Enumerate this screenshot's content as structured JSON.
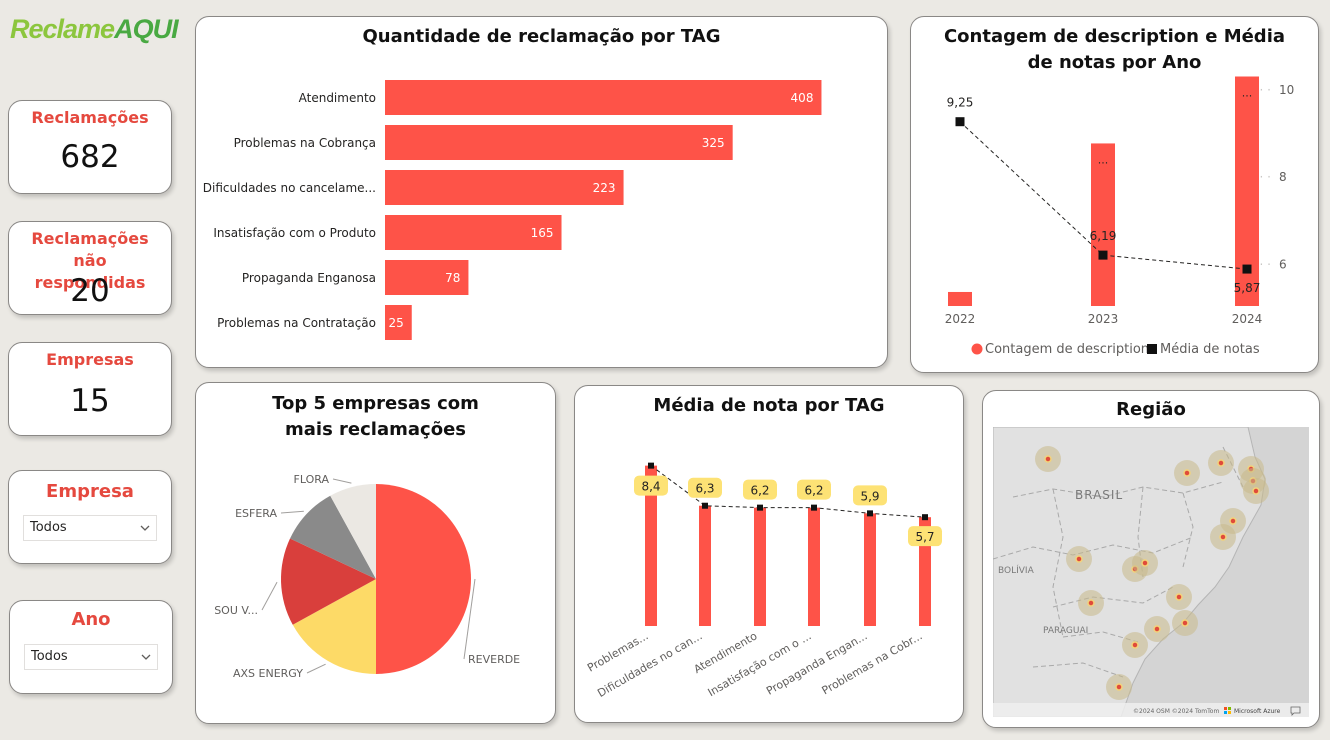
{
  "logo": {
    "part1": "Reclame",
    "part2": "AQUI"
  },
  "kpis": [
    {
      "label": "Reclamações",
      "value": "682"
    },
    {
      "label": "Reclamações não respondidas",
      "value": "20"
    },
    {
      "label": "Empresas",
      "value": "15"
    }
  ],
  "slicers": [
    {
      "title": "Empresa",
      "value": "Todos"
    },
    {
      "title": "Ano",
      "value": "Todos"
    }
  ],
  "colors": {
    "accent": "#fe5348",
    "label_bg": "#fde275",
    "pie": [
      "#fe5348",
      "#fdda67",
      "#d93f3c",
      "#8a8a8a",
      "#ebe8e3"
    ]
  },
  "chart_data": [
    {
      "type": "bar",
      "title": "Quantidade de reclamação por TAG",
      "categories": [
        "Atendimento",
        "Problemas na Cobrança",
        "Dificuldades no cancelame...",
        "Insatisfação com o Produto",
        "Propaganda Enganosa",
        "Problemas na Contratação"
      ],
      "values": [
        408,
        325,
        223,
        165,
        78,
        25
      ],
      "xlim": [
        0,
        430
      ],
      "orientation": "horizontal"
    },
    {
      "type": "bar+line",
      "title": "Contagem de description e Média de notas por Ano",
      "categories": [
        "2022",
        "2023",
        "2024"
      ],
      "series": [
        {
          "name": "Contagem de description",
          "type": "bar",
          "values": [
            22,
            255,
            360
          ],
          "labels": [
            "",
            "...",
            "..."
          ]
        },
        {
          "name": "Média de notas",
          "type": "line",
          "values": [
            9.25,
            6.19,
            5.87
          ],
          "labels": [
            "9,25",
            "6,19",
            "5,87"
          ]
        }
      ],
      "y2_ticks": [
        "10",
        "8",
        "6"
      ],
      "y2lim": [
        5,
        10
      ],
      "ylim": [
        0,
        400
      ],
      "legend": "bottom"
    },
    {
      "type": "pie",
      "title": "Top 5 empresas com mais reclamações",
      "labels": [
        "REVERDE",
        "AXS ENERGY",
        "SOU V...",
        "ESFERA",
        "FLORA"
      ],
      "values": [
        50,
        17,
        15,
        10,
        8
      ]
    },
    {
      "type": "bar+line",
      "title": "Média de nota por TAG",
      "categories": [
        "Problemas...",
        "Dificuldades no can...",
        "Atendimento",
        "Insatisfação com o ...",
        "Propaganda Engan...",
        "Problemas na Cobr..."
      ],
      "values": [
        8.4,
        6.3,
        6.2,
        6.2,
        5.9,
        5.7
      ],
      "labels": [
        "8,4",
        "6,3",
        "6,2",
        "6,2",
        "5,9",
        "5,7"
      ],
      "ylim": [
        0,
        8.8
      ]
    }
  ],
  "map": {
    "title": "Região",
    "labels": {
      "brasil": "BRASIL",
      "bolivia": "BOLÍVIA",
      "paraguai": "PARAGUAI"
    },
    "attribution": "©2024 OSM ©2024 TomTom",
    "provider": "Microsoft Azure"
  }
}
